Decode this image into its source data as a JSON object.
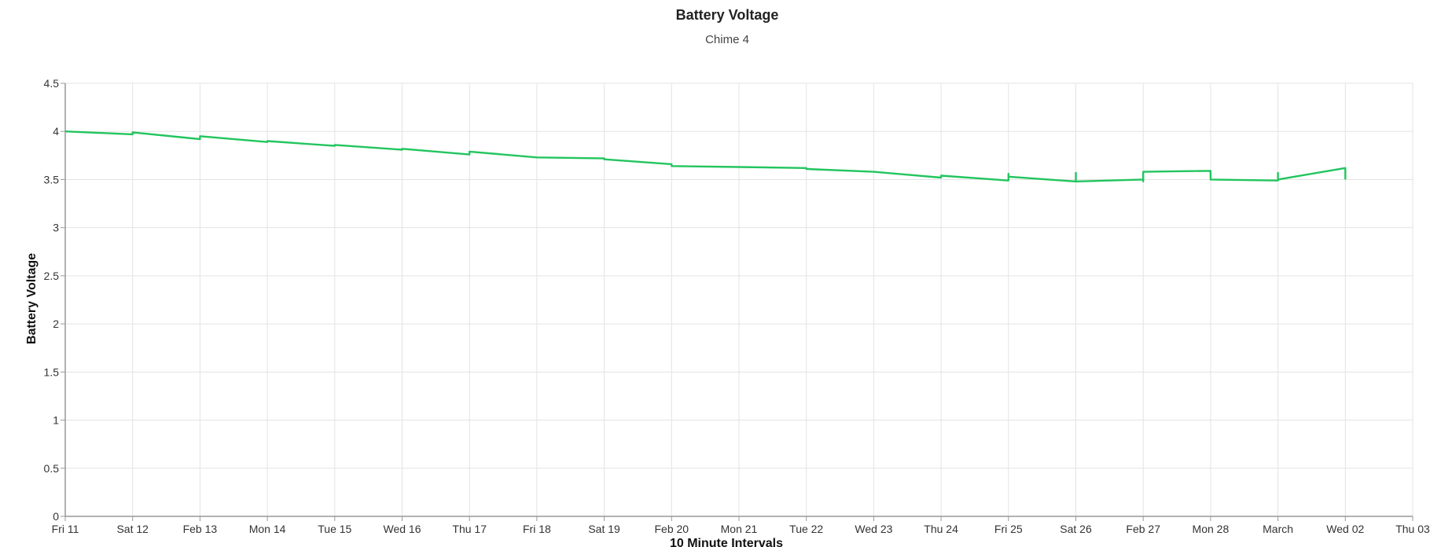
{
  "chart_data": {
    "type": "line",
    "title": "Battery Voltage",
    "subtitle": "Chime 4",
    "xlabel": "10 Minute Intervals",
    "ylabel": "Battery Voltage",
    "ylim": [
      0,
      4.5
    ],
    "yticks": [
      "0",
      "0.5",
      "1",
      "1.5",
      "2",
      "2.5",
      "3",
      "3.5",
      "4",
      "4.5"
    ],
    "xlim": [
      "2022-02-11",
      "2022-03-03"
    ],
    "xticks": [
      {
        "date": "2022-02-11",
        "label": "Fri 11"
      },
      {
        "date": "2022-02-12",
        "label": "Sat 12"
      },
      {
        "date": "2022-02-13",
        "label": "Feb 13"
      },
      {
        "date": "2022-02-14",
        "label": "Mon 14"
      },
      {
        "date": "2022-02-15",
        "label": "Tue 15"
      },
      {
        "date": "2022-02-16",
        "label": "Wed 16"
      },
      {
        "date": "2022-02-17",
        "label": "Thu 17"
      },
      {
        "date": "2022-02-18",
        "label": "Fri 18"
      },
      {
        "date": "2022-02-19",
        "label": "Sat 19"
      },
      {
        "date": "2022-02-20",
        "label": "Feb 20"
      },
      {
        "date": "2022-02-21",
        "label": "Mon 21"
      },
      {
        "date": "2022-02-22",
        "label": "Tue 22"
      },
      {
        "date": "2022-02-23",
        "label": "Wed 23"
      },
      {
        "date": "2022-02-24",
        "label": "Thu 24"
      },
      {
        "date": "2022-02-25",
        "label": "Fri 25"
      },
      {
        "date": "2022-02-26",
        "label": "Sat 26"
      },
      {
        "date": "2022-02-27",
        "label": "Feb 27"
      },
      {
        "date": "2022-02-28",
        "label": "Mon 28"
      },
      {
        "date": "2022-03-01",
        "label": "March"
      },
      {
        "date": "2022-03-02",
        "label": "Wed 02"
      },
      {
        "date": "2022-03-03",
        "label": "Thu 03"
      }
    ],
    "grid": true,
    "color": "#22c55e",
    "series": [
      {
        "points": [
          {
            "x": "2022-02-11 00:00",
            "y": 4.0
          },
          {
            "x": "2022-02-12 00:00",
            "y": 3.97
          },
          {
            "x": "2022-02-12 00:00",
            "y": 3.99
          },
          {
            "x": "2022-02-13 00:00",
            "y": 3.92
          },
          {
            "x": "2022-02-13 00:00",
            "y": 3.95
          },
          {
            "x": "2022-02-14 00:00",
            "y": 3.89
          },
          {
            "x": "2022-02-14 00:00",
            "y": 3.9
          },
          {
            "x": "2022-02-15 00:00",
            "y": 3.85
          },
          {
            "x": "2022-02-15 00:00",
            "y": 3.86
          },
          {
            "x": "2022-02-16 00:00",
            "y": 3.81
          },
          {
            "x": "2022-02-16 00:00",
            "y": 3.82
          },
          {
            "x": "2022-02-17 00:00",
            "y": 3.76
          },
          {
            "x": "2022-02-17 00:00",
            "y": 3.79
          },
          {
            "x": "2022-02-18 00:00",
            "y": 3.73
          },
          {
            "x": "2022-02-19 00:00",
            "y": 3.72
          },
          {
            "x": "2022-02-19 00:00",
            "y": 3.71
          },
          {
            "x": "2022-02-20 00:00",
            "y": 3.66
          },
          {
            "x": "2022-02-20 00:00",
            "y": 3.64
          },
          {
            "x": "2022-02-21 00:00",
            "y": 3.63
          },
          {
            "x": "2022-02-22 00:00",
            "y": 3.62
          },
          {
            "x": "2022-02-22 00:00",
            "y": 3.61
          },
          {
            "x": "2022-02-23 00:00",
            "y": 3.58
          },
          {
            "x": "2022-02-24 00:00",
            "y": 3.52
          },
          {
            "x": "2022-02-24 00:00",
            "y": 3.54
          },
          {
            "x": "2022-02-25 00:00",
            "y": 3.49
          },
          {
            "x": "2022-02-25 00:00",
            "y": 3.56
          },
          {
            "x": "2022-02-25 00:00",
            "y": 3.53
          },
          {
            "x": "2022-02-26 00:00",
            "y": 3.48
          },
          {
            "x": "2022-02-26 00:00",
            "y": 3.57
          },
          {
            "x": "2022-02-26 00:00",
            "y": 3.48
          },
          {
            "x": "2022-02-27 00:00",
            "y": 3.5
          },
          {
            "x": "2022-02-27 00:00",
            "y": 3.48
          },
          {
            "x": "2022-02-27 00:00",
            "y": 3.58
          },
          {
            "x": "2022-02-28 00:00",
            "y": 3.59
          },
          {
            "x": "2022-02-28 00:00",
            "y": 3.5
          },
          {
            "x": "2022-03-01 00:00",
            "y": 3.49
          },
          {
            "x": "2022-03-01 00:00",
            "y": 3.57
          },
          {
            "x": "2022-03-01 00:00",
            "y": 3.5
          },
          {
            "x": "2022-03-02 00:00",
            "y": 3.62
          },
          {
            "x": "2022-03-02 00:00",
            "y": 3.5
          }
        ]
      }
    ]
  }
}
